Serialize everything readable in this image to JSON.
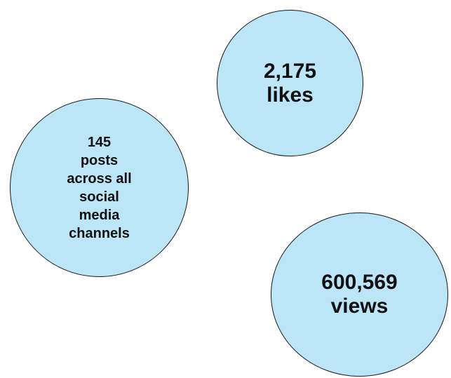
{
  "bubbles": {
    "likes": {
      "lines": [
        "2,175",
        "likes"
      ],
      "fill": "#bde5f8",
      "stroke": "#1a1a1a"
    },
    "posts": {
      "lines": [
        "145",
        "posts",
        "across all",
        "social",
        "media",
        "channels"
      ],
      "fill": "#bde5f8",
      "stroke": "#1a1a1a"
    },
    "views": {
      "lines": [
        "600,569",
        "views"
      ],
      "fill": "#bde5f8",
      "stroke": "#1a1a1a"
    }
  }
}
